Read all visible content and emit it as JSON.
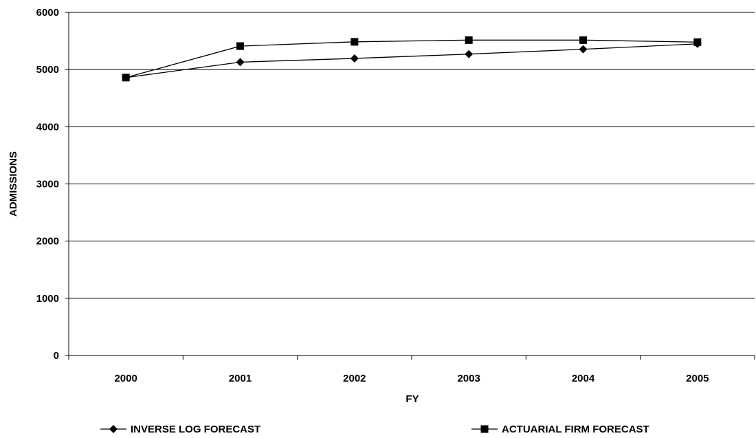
{
  "chart_data": {
    "type": "line",
    "xlabel": "FY",
    "ylabel": "ADMISSIONS",
    "categories": [
      "2000",
      "2001",
      "2002",
      "2003",
      "2004",
      "2005"
    ],
    "ylim": [
      0,
      6000
    ],
    "yticks": [
      0,
      1000,
      2000,
      3000,
      4000,
      5000,
      6000
    ],
    "grid": "horizontal",
    "legend_position": "bottom",
    "series": [
      {
        "name": "INVERSE LOG FORECAST",
        "marker": "diamond",
        "values": [
          4860,
          5130,
          5195,
          5270,
          5355,
          5450
        ]
      },
      {
        "name": "ACTUARIAL FIRM FORECAST",
        "marker": "square",
        "values": [
          4860,
          5410,
          5485,
          5515,
          5515,
          5480
        ]
      }
    ]
  }
}
